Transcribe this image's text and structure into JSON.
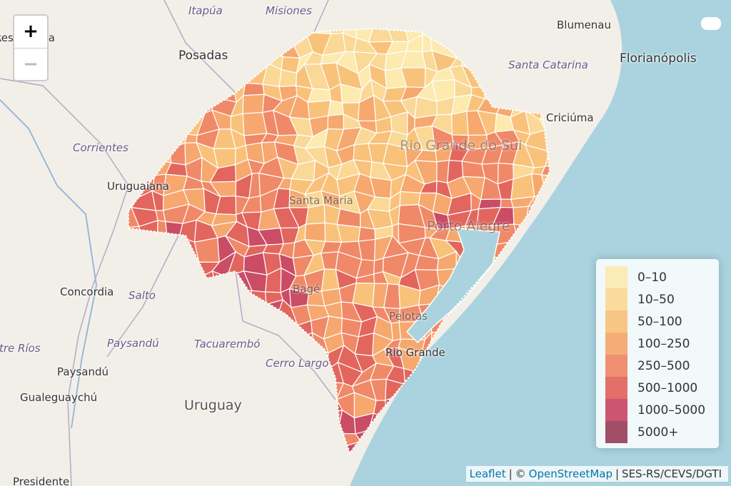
{
  "zoom": {
    "zoom_in": "+",
    "zoom_out": "−"
  },
  "places": [
    "Itapúa",
    "Misiones",
    "Blumenau",
    "Resistencia",
    "Posadas",
    "Florianópolis",
    "Santa Catarina",
    "Criciúma",
    "Corrientes",
    "Rio Grande do Sul",
    "Uruguaiana",
    "Santa Maria",
    "Porto Alegre",
    "Concordia",
    "Salto",
    "Bagé",
    "Pelotas",
    "Entre Ríos",
    "Paysandú",
    "Tacuarembó",
    "Rio Grande",
    "Cerro Largo",
    "Paysandú",
    "Gualeguaychú",
    "Uruguay",
    "Presidente"
  ],
  "legend": {
    "items": [
      {
        "label": "0–10",
        "color": "#fde9a9"
      },
      {
        "label": "10–50",
        "color": "#fbd58c"
      },
      {
        "label": "50–100",
        "color": "#f9bd6e"
      },
      {
        "label": "100–250",
        "color": "#f6a060"
      },
      {
        "label": "250–500",
        "color": "#f07d59"
      },
      {
        "label": "500–1000",
        "color": "#e0574f"
      },
      {
        "label": "1000–5000",
        "color": "#c53a57"
      },
      {
        "label": "5000+",
        "color": "#93304f"
      }
    ]
  },
  "attribution": [
    "Leaflet",
    "|",
    "©",
    "OpenStreetMap",
    "|",
    "SES-RS/CEVS/DGTI"
  ]
}
